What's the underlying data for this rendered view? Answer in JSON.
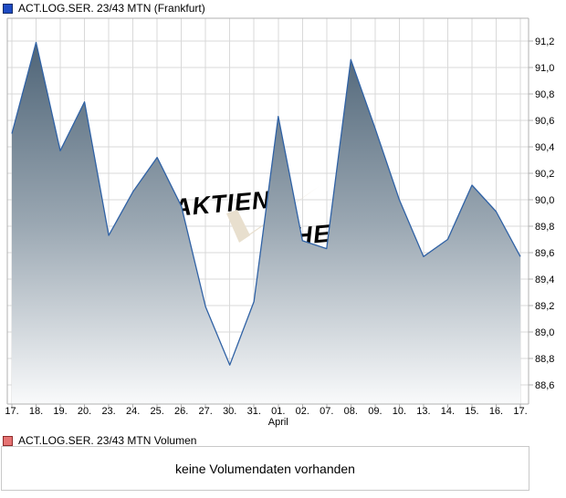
{
  "header": {
    "title": "ACT.LOG.SER. 23/43 MTN (Frankfurt)",
    "marker": {
      "fill": "#1e4bc3",
      "border": "#122a66"
    }
  },
  "volume_panel": {
    "title": "ACT.LOG.SER. 23/43 MTN Volumen",
    "marker": {
      "fill": "#e57373",
      "border": "#8e2a2a"
    },
    "message": "keine Volumendaten vorhanden"
  },
  "watermark": {
    "text_left": "AKTIEN",
    "check_icon": "check-icon",
    "text_right": "CHECK",
    "color": "#e8dfce"
  },
  "chart_data": {
    "type": "area",
    "title": "ACT.LOG.SER. 23/43 MTN (Frankfurt)",
    "categories": [
      "17.",
      "18.",
      "19.",
      "20.",
      "23.",
      "24.",
      "25.",
      "26.",
      "27.",
      "30.",
      "31.",
      "01.",
      "02.",
      "07.",
      "08.",
      "09.",
      "10.",
      "13.",
      "14.",
      "15.",
      "16.",
      "17."
    ],
    "x_axis": {
      "month_label": "April",
      "month_label_index": 11
    },
    "values": [
      90.5,
      91.19,
      90.37,
      90.74,
      89.73,
      90.06,
      90.32,
      89.95,
      89.19,
      88.75,
      89.23,
      90.63,
      89.69,
      89.63,
      91.06,
      90.54,
      90.0,
      89.57,
      89.7,
      90.11,
      89.91,
      89.57
    ],
    "ylim": [
      88.45,
      91.37
    ],
    "yticks": [
      91.2,
      91.0,
      90.8,
      90.6,
      90.4,
      90.2,
      90.0,
      89.8,
      89.6,
      89.4,
      89.2,
      89.0,
      88.8,
      88.6
    ],
    "ytick_labels": [
      "91,2",
      "91,0",
      "90,8",
      "90,6",
      "90,4",
      "90,2",
      "90,0",
      "89,8",
      "89,6",
      "89,4",
      "89,2",
      "89,0",
      "88,8",
      "88,6"
    ],
    "grid": true,
    "legend_position": "top-left",
    "line_color": "#3062a5",
    "area_gradient": [
      "#4e6477",
      "#9aa7b2",
      "#f9fafb"
    ],
    "grid_color": "#d9d9d9",
    "axis_color": "#b0b0b0",
    "label_color": "#000000"
  }
}
